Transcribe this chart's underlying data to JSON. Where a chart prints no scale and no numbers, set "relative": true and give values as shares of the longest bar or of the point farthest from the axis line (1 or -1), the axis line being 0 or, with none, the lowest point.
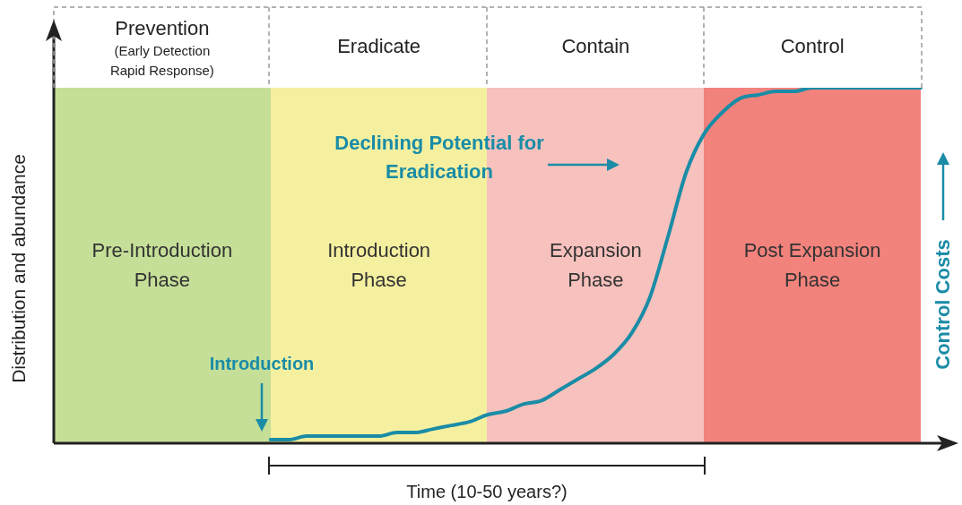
{
  "chart_data": {
    "type": "line",
    "relative": true,
    "legend": false,
    "marker": "none",
    "xlabel": "Time (10-50 years?)",
    "ylabel": "Distribution and abundance",
    "y2label": "Control Costs",
    "categories": [
      null,
      null,
      null,
      null,
      null,
      null,
      null,
      null,
      null,
      null,
      null,
      null,
      null,
      null,
      null,
      null,
      null,
      null,
      null,
      null,
      null,
      null,
      null,
      null,
      null,
      null,
      null,
      null,
      null,
      null,
      null,
      null,
      null,
      null,
      null,
      null,
      null,
      null,
      null,
      null,
      null,
      null,
      null,
      null,
      null,
      null,
      null,
      null,
      null
    ],
    "series": [
      {
        "color": "#1a8ca6",
        "values": [
          null,
          null,
          null,
          null,
          null,
          null,
          null,
          null,
          null,
          null,
          null,
          null,
          0.01,
          0.01,
          0.02,
          0.02,
          0.02,
          0.02,
          0.02,
          0.03,
          0.03,
          0.04,
          0.05,
          0.06,
          0.08,
          0.09,
          0.11,
          0.12,
          0.15,
          0.18,
          0.21,
          0.25,
          0.31,
          0.41,
          0.58,
          0.76,
          0.87,
          0.93,
          0.97,
          0.98,
          0.99,
          0.99,
          1.0,
          1.0,
          1.0,
          1.0,
          1.0,
          1.0,
          1.0
        ]
      }
    ],
    "annotations": [
      "Prevention",
      "(Early Detection Rapid Response)",
      "Eradicate",
      "Contain",
      "Control",
      "Introduction",
      "Declining Potential for Eradication",
      "Pre-Introduction Phase",
      "Introduction Phase",
      "Expansion Phase",
      "Post Expansion Phase"
    ]
  }
}
